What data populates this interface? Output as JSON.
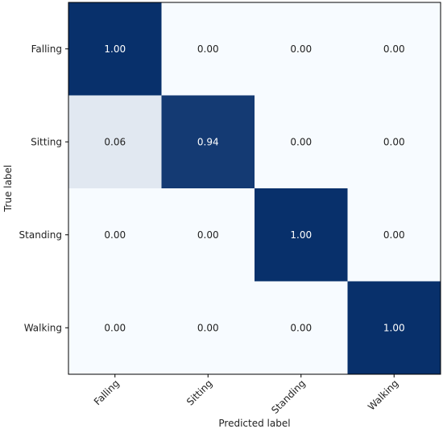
{
  "chart_data": {
    "type": "heatmap",
    "title": "",
    "xlabel": "Predicted label",
    "ylabel": "True label",
    "x_categories": [
      "Falling",
      "Sitting",
      "Standing",
      "Walking"
    ],
    "y_categories": [
      "Falling",
      "Sitting",
      "Standing",
      "Walking"
    ],
    "values": [
      [
        1.0,
        0.0,
        0.0,
        0.0
      ],
      [
        0.06,
        0.94,
        0.0,
        0.0
      ],
      [
        0.0,
        0.0,
        1.0,
        0.0
      ],
      [
        0.0,
        0.0,
        0.0,
        1.0
      ]
    ],
    "value_format": "0.00",
    "vmin": 0,
    "vmax": 1,
    "colormap": "Blues",
    "colors": {
      "low": "#f7fbff",
      "high": "#08306b",
      "text_dark": "#222222",
      "text_light": "#ffffff"
    },
    "grid": false,
    "legend": false
  }
}
